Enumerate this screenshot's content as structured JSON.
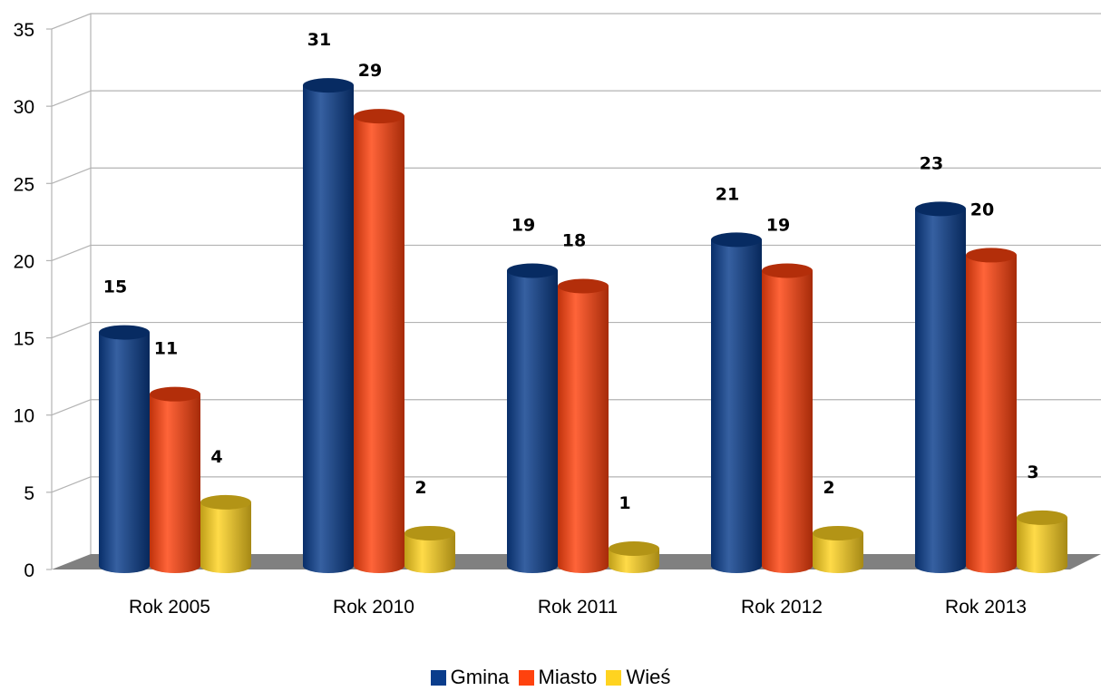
{
  "chart_data": {
    "type": "bar",
    "categories": [
      "Rok 2005",
      "Rok 2010",
      "Rok 2011",
      "Rok 2012",
      "Rok 2013"
    ],
    "series": [
      {
        "name": "Gmina",
        "values": [
          15,
          31,
          19,
          21,
          23
        ],
        "color": "#0a3d8c"
      },
      {
        "name": "Miasto",
        "values": [
          11,
          29,
          18,
          19,
          20
        ],
        "color": "#ff420e"
      },
      {
        "name": "Wieś",
        "values": [
          4,
          2,
          1,
          2,
          3
        ],
        "color": "#ffd320"
      }
    ],
    "yticks": [
      "0",
      "5",
      "10",
      "15",
      "20",
      "25",
      "30",
      "35"
    ],
    "ylim": [
      0,
      35
    ],
    "grid": true,
    "legend_position": "bottom",
    "data_labels": true,
    "style": "3d-cylinder"
  }
}
